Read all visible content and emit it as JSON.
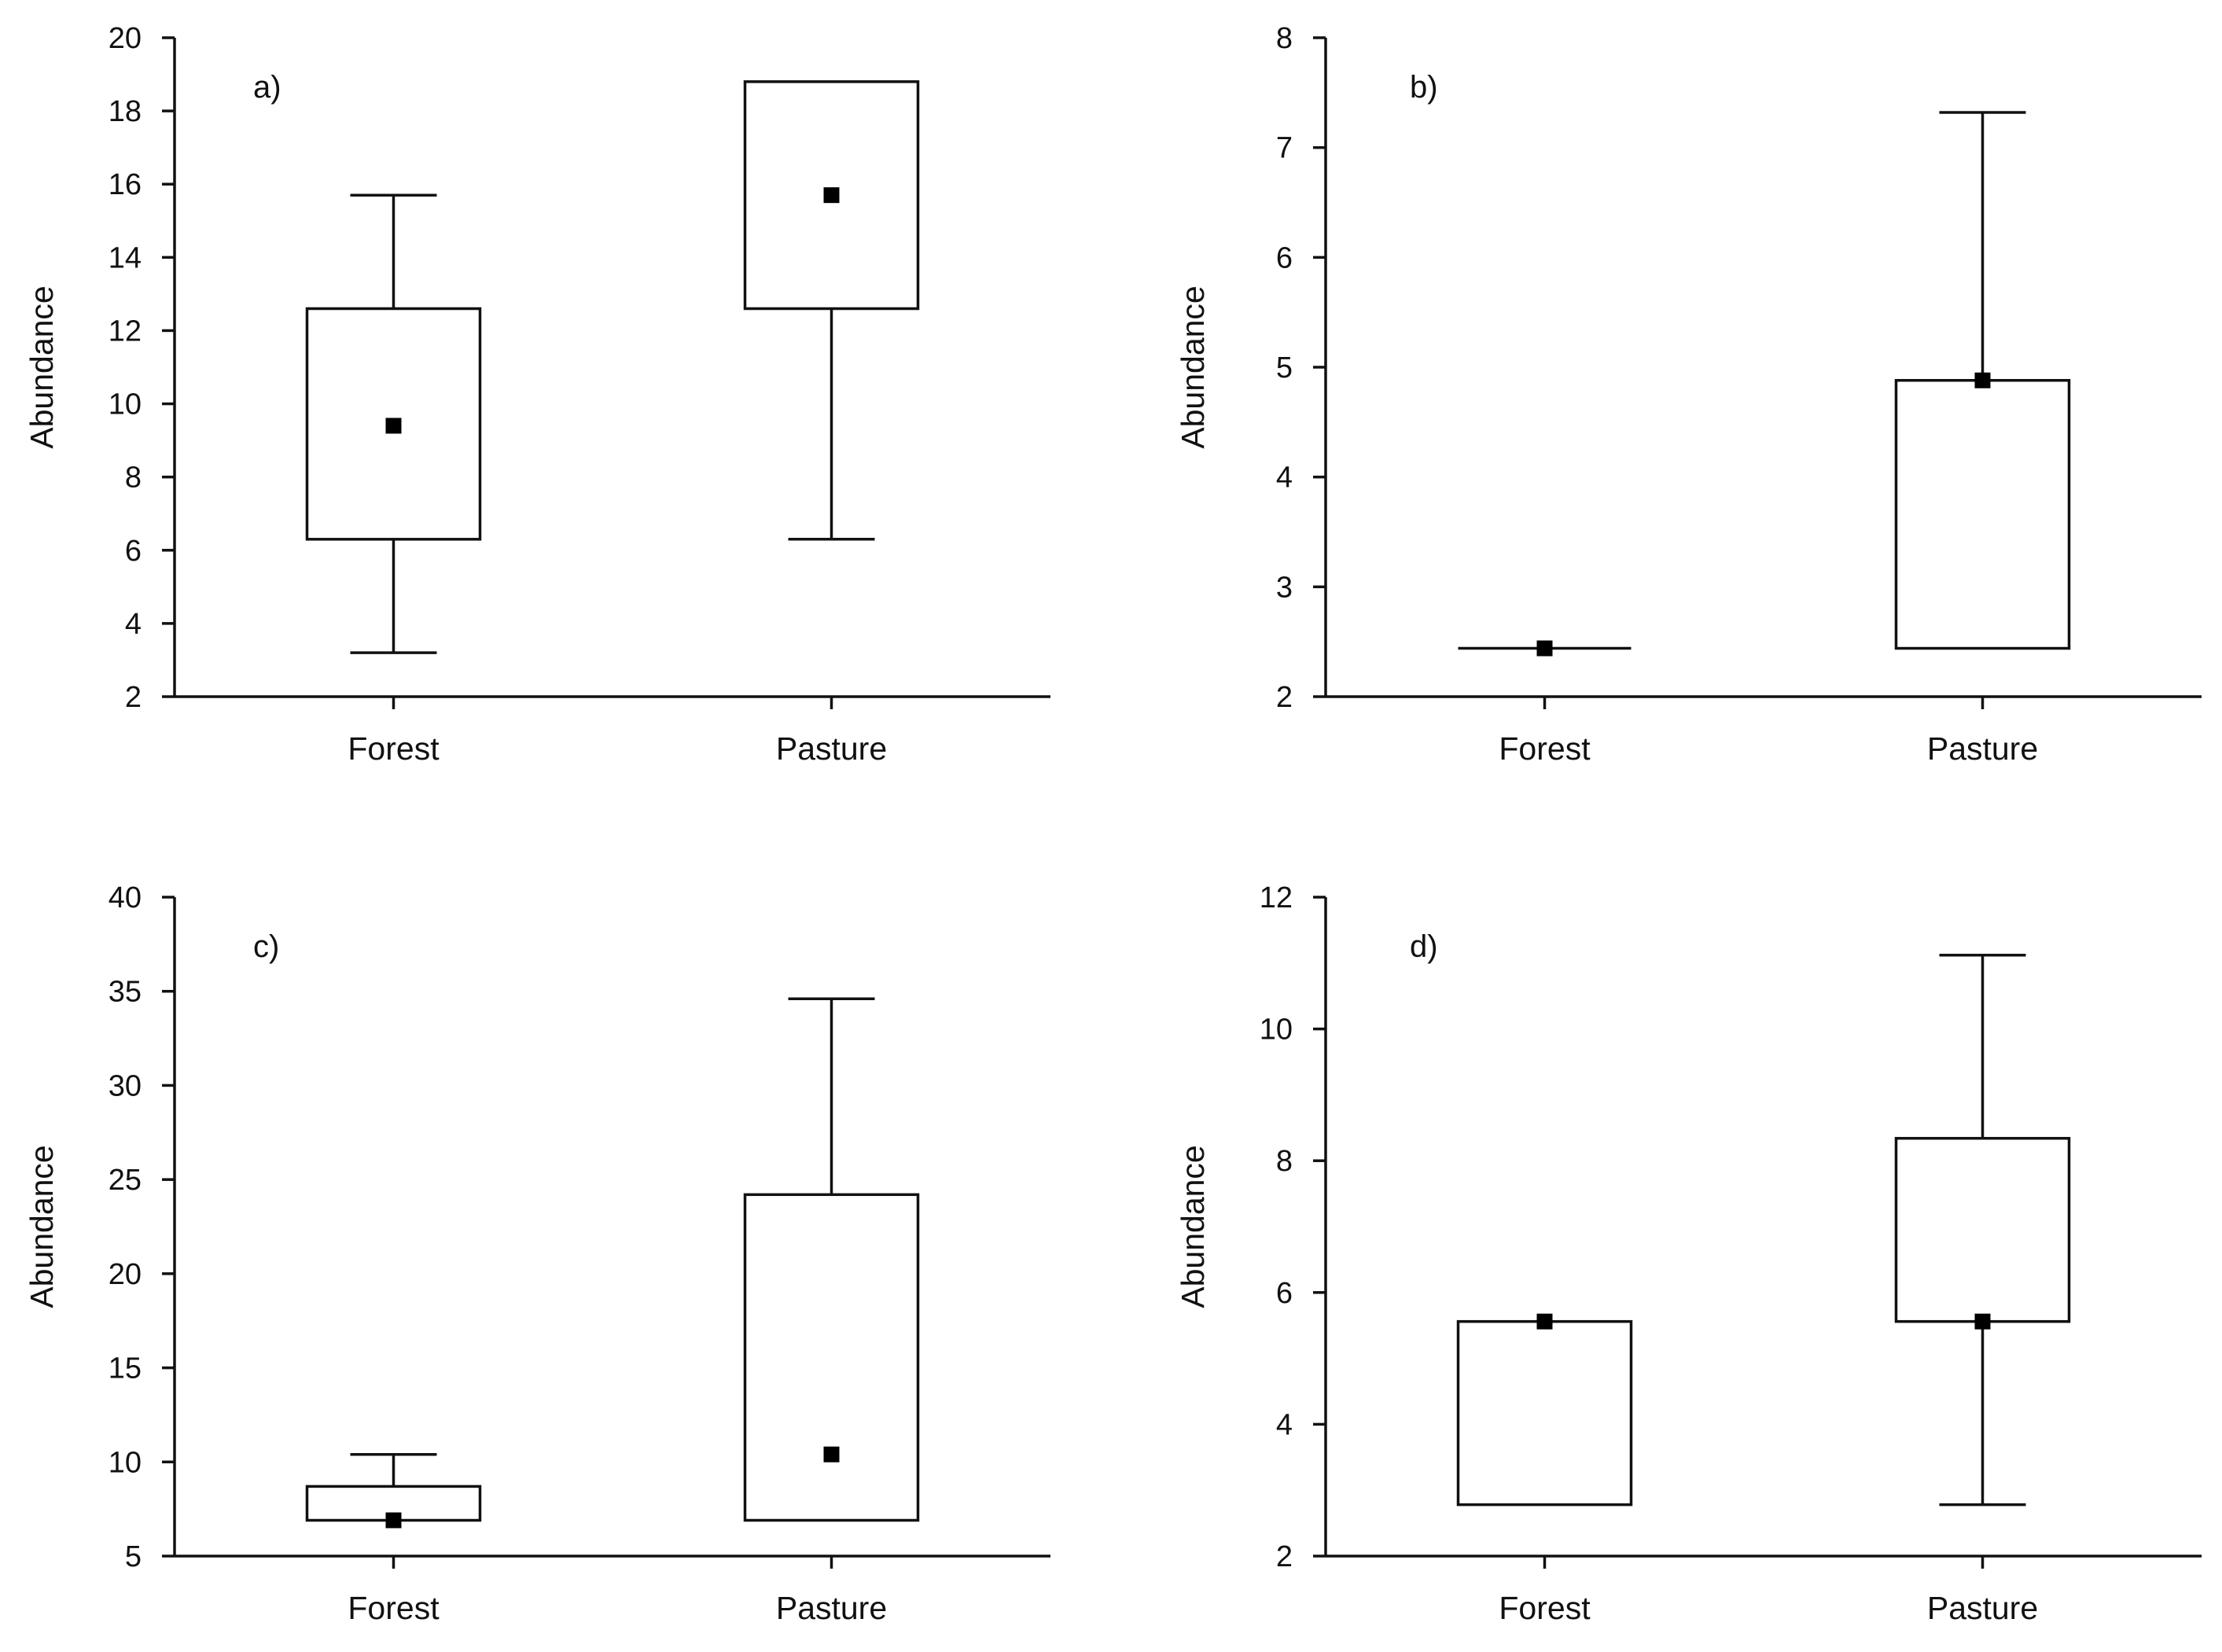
{
  "chart_data": [
    {
      "type": "box",
      "panel_label": "a)",
      "ylabel": "Abundance",
      "ylim": [
        2,
        20
      ],
      "yticks": [
        "2",
        "4",
        "6",
        "8",
        "10",
        "12",
        "14",
        "16",
        "18",
        "20"
      ],
      "categories": [
        "Forest",
        "Pasture"
      ],
      "boxes": [
        {
          "category": "Forest",
          "whisker_low": 3.2,
          "q1": 6.3,
          "q3": 12.6,
          "whisker_high": 15.7,
          "point": 9.4
        },
        {
          "category": "Pasture",
          "whisker_low": 6.3,
          "q1": 12.6,
          "q3": 18.8,
          "whisker_high": 18.8,
          "point": 15.7
        }
      ]
    },
    {
      "type": "box",
      "panel_label": "b)",
      "ylabel": "Abundance",
      "ylim": [
        2,
        8
      ],
      "yticks": [
        "2",
        "3",
        "4",
        "5",
        "6",
        "7",
        "8"
      ],
      "categories": [
        "Forest",
        "Pasture"
      ],
      "boxes": [
        {
          "category": "Forest",
          "whisker_low": 2.44,
          "q1": 2.44,
          "q3": 2.44,
          "whisker_high": 2.44,
          "point": 2.44
        },
        {
          "category": "Pasture",
          "whisker_low": 2.44,
          "q1": 2.44,
          "q3": 4.88,
          "whisker_high": 7.32,
          "point": 4.88
        }
      ]
    },
    {
      "type": "box",
      "panel_label": "c)",
      "ylabel": "Abundance",
      "ylim": [
        5,
        40
      ],
      "yticks": [
        "5",
        "10",
        "15",
        "20",
        "25",
        "30",
        "35",
        "40"
      ],
      "categories": [
        "Forest",
        "Pasture"
      ],
      "boxes": [
        {
          "category": "Forest",
          "whisker_low": 6.9,
          "q1": 6.9,
          "q3": 8.7,
          "whisker_high": 10.4,
          "point": 6.9
        },
        {
          "category": "Pasture",
          "whisker_low": 6.9,
          "q1": 6.9,
          "q3": 24.2,
          "whisker_high": 34.6,
          "point": 10.4
        }
      ]
    },
    {
      "type": "box",
      "panel_label": "d)",
      "ylabel": "Abundance",
      "ylim": [
        2,
        12
      ],
      "yticks": [
        "2",
        "4",
        "6",
        "8",
        "10",
        "12"
      ],
      "categories": [
        "Forest",
        "Pasture"
      ],
      "boxes": [
        {
          "category": "Forest",
          "whisker_low": 2.78,
          "q1": 2.78,
          "q3": 5.56,
          "whisker_high": 5.56,
          "point": 5.56
        },
        {
          "category": "Pasture",
          "whisker_low": 2.78,
          "q1": 5.56,
          "q3": 8.34,
          "whisker_high": 11.12,
          "point": 5.56
        }
      ]
    }
  ]
}
